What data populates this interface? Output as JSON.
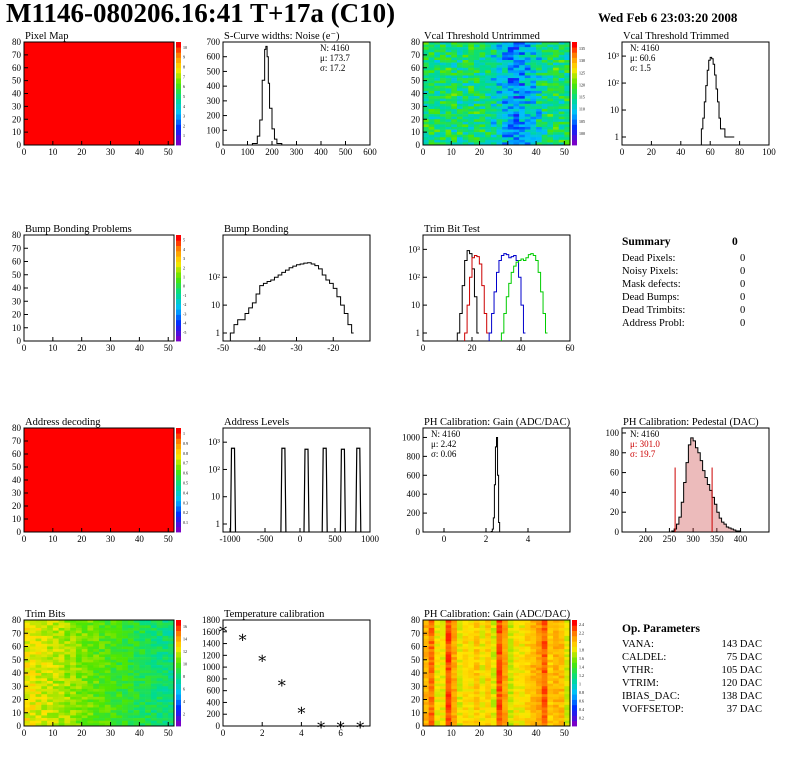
{
  "header": {
    "title": "M1146-080206.16:41 T+17a (C10)",
    "date": "Wed Feb  6 23:03:20 2008"
  },
  "chart_data": [
    {
      "id": "pixel-map",
      "type": "heatmap",
      "title": "Pixel Map",
      "xlim": [
        0,
        52
      ],
      "ylim": [
        0,
        80
      ],
      "xticks": [
        0,
        10,
        20,
        30,
        40,
        50
      ],
      "yticks": [
        0,
        10,
        20,
        30,
        40,
        50,
        60,
        70,
        80
      ],
      "fill": "uniform",
      "fill_color": "#ff0000",
      "palette_ticks": [
        "1",
        "2",
        "3",
        "4",
        "5",
        "6",
        "7",
        "8",
        "9",
        "10"
      ]
    },
    {
      "id": "scurve-widths",
      "type": "histogram",
      "title": "S-Curve widths: Noise (e⁻)",
      "xlim": [
        0,
        600
      ],
      "ylim": [
        0,
        700
      ],
      "xticks": [
        0,
        100,
        200,
        300,
        400,
        500,
        600
      ],
      "yticks": [
        0,
        100,
        200,
        300,
        400,
        500,
        600,
        700
      ],
      "stats": {
        "N": "N: 4160",
        "mu": "μ: 173.7",
        "sigma": "σ: 17.2"
      },
      "x": [
        100,
        120,
        140,
        150,
        160,
        170,
        175,
        180,
        185,
        190,
        200,
        210,
        220,
        240
      ],
      "values": [
        0,
        10,
        60,
        170,
        440,
        650,
        670,
        600,
        420,
        250,
        110,
        40,
        10,
        0
      ]
    },
    {
      "id": "vcal-untrimmed",
      "type": "heatmap",
      "title": "Vcal Threshold Untrimmed",
      "xlim": [
        0,
        52
      ],
      "ylim": [
        0,
        80
      ],
      "xticks": [
        0,
        10,
        20,
        30,
        40,
        50
      ],
      "yticks": [
        0,
        10,
        20,
        30,
        40,
        50,
        60,
        70,
        80
      ],
      "fill": "noise",
      "base_range": [
        0.35,
        0.6
      ],
      "band_center_x": 33,
      "band_width": 12,
      "palette_ticks": [
        "100",
        "105",
        "110",
        "115",
        "120",
        "125",
        "130",
        "135"
      ]
    },
    {
      "id": "vcal-trimmed",
      "type": "histogram",
      "title": "Vcal Threshold Trimmed",
      "xlim": [
        0,
        100
      ],
      "yscale": "log",
      "xticks": [
        0,
        20,
        40,
        60,
        80,
        100
      ],
      "yticks": [
        "1",
        "10",
        "10²",
        "10³"
      ],
      "stats": {
        "N": "N: 4160",
        "mu": "μ: 60.6",
        "sigma": "σ:  1.5"
      },
      "x": [
        54,
        55,
        56,
        57,
        58,
        59,
        60,
        61,
        62,
        63,
        64,
        65,
        66,
        67,
        70,
        72,
        73,
        74,
        75
      ],
      "values": [
        2,
        5,
        20,
        80,
        300,
        700,
        900,
        800,
        500,
        200,
        60,
        20,
        5,
        2,
        1,
        1,
        1,
        1,
        1
      ]
    },
    {
      "id": "bump-bonding-problems",
      "type": "heatmap",
      "title": "Bump Bonding Problems",
      "xlim": [
        0,
        52
      ],
      "ylim": [
        0,
        80
      ],
      "xticks": [
        0,
        10,
        20,
        30,
        40,
        50
      ],
      "yticks": [
        0,
        10,
        20,
        30,
        40,
        50,
        60,
        70,
        80
      ],
      "fill": "empty",
      "palette_ticks": [
        "-5",
        "-4",
        "-3",
        "-2",
        "-1",
        "0",
        "1",
        "2",
        "3",
        "4",
        "5"
      ]
    },
    {
      "id": "bump-bonding",
      "type": "histogram",
      "title": "Bump Bonding",
      "xlim": [
        -50,
        -10
      ],
      "yscale": "log",
      "xticks": [
        -50,
        -40,
        -30,
        -20
      ],
      "yticks": [
        "1",
        "10",
        "10²"
      ],
      "x": [
        -48,
        -47,
        -46,
        -45,
        -44,
        -43,
        -42,
        -41,
        -40,
        -39,
        -38,
        -37,
        -36,
        -35,
        -34,
        -33,
        -32,
        -31,
        -30,
        -29,
        -28,
        -27,
        -26,
        -25,
        -24,
        -23,
        -22,
        -21,
        -20,
        -19,
        -18,
        -17,
        -16,
        -15
      ],
      "values": [
        1,
        2,
        3,
        3,
        5,
        8,
        12,
        25,
        50,
        60,
        70,
        80,
        100,
        120,
        150,
        180,
        220,
        250,
        280,
        300,
        320,
        330,
        300,
        260,
        200,
        120,
        80,
        60,
        40,
        20,
        10,
        5,
        2,
        1
      ]
    },
    {
      "id": "trim-bit-test",
      "type": "histogram",
      "title": "Trim Bit Test",
      "xlim": [
        0,
        60
      ],
      "yscale": "log",
      "xticks": [
        0,
        20,
        40,
        60
      ],
      "yticks": [
        "1",
        "10",
        "10²",
        "10³"
      ],
      "series": [
        {
          "color": "#000000",
          "x": [
            14,
            15,
            16,
            17,
            18,
            19,
            20,
            21,
            22
          ],
          "values": [
            1,
            5,
            50,
            400,
            900,
            700,
            200,
            20,
            1
          ]
        },
        {
          "color": "#cc0000",
          "x": [
            17,
            18,
            19,
            20,
            21,
            22,
            23,
            24,
            25,
            26
          ],
          "values": [
            1,
            10,
            100,
            500,
            600,
            550,
            300,
            50,
            5,
            1
          ]
        },
        {
          "color": "#0000cc",
          "x": [
            27,
            28,
            29,
            30,
            31,
            32,
            33,
            34,
            35,
            36,
            37,
            38,
            39,
            40,
            41
          ],
          "values": [
            1,
            5,
            30,
            150,
            400,
            600,
            700,
            650,
            500,
            550,
            600,
            400,
            100,
            10,
            1
          ]
        },
        {
          "color": "#00cc00",
          "x": [
            32,
            33,
            34,
            35,
            36,
            37,
            38,
            39,
            40,
            41,
            42,
            43,
            44,
            45,
            46,
            47,
            48,
            49,
            50
          ],
          "values": [
            1,
            5,
            20,
            60,
            150,
            250,
            350,
            400,
            450,
            400,
            500,
            650,
            700,
            600,
            400,
            150,
            30,
            5,
            1
          ]
        }
      ]
    },
    {
      "id": "address-decoding",
      "type": "heatmap",
      "title": "Address decoding",
      "xlim": [
        0,
        52
      ],
      "ylim": [
        0,
        80
      ],
      "xticks": [
        0,
        10,
        20,
        30,
        40,
        50
      ],
      "yticks": [
        0,
        10,
        20,
        30,
        40,
        50,
        60,
        70,
        80
      ],
      "fill": "uniform",
      "fill_color": "#ff0000",
      "palette_ticks": [
        "0.1",
        "0.2",
        "0.3",
        "0.4",
        "0.5",
        "0.6",
        "0.7",
        "0.8",
        "0.9",
        "1"
      ]
    },
    {
      "id": "address-levels",
      "type": "histogram",
      "title": "Address Levels",
      "xlim": [
        -1100,
        1000
      ],
      "yscale": "log",
      "xticks": [
        -1000,
        -500,
        0,
        500,
        1000
      ],
      "yticks": [
        "1",
        "10",
        "10²",
        "10³"
      ],
      "peaks": [
        {
          "center": -950,
          "height": 600
        },
        {
          "center": -230,
          "height": 600
        },
        {
          "center": 100,
          "height": 550
        },
        {
          "center": 360,
          "height": 600
        },
        {
          "center": 620,
          "height": 550
        },
        {
          "center": 840,
          "height": 600
        }
      ]
    },
    {
      "id": "ph-gain",
      "type": "histogram",
      "title": "PH Calibration: Gain (ADC/DAC)",
      "xlim": [
        -1,
        6
      ],
      "ylim": [
        0,
        1100
      ],
      "xticks": [
        0,
        2,
        4
      ],
      "yticks": [
        0,
        200,
        400,
        600,
        800,
        1000
      ],
      "stats": {
        "N": "N: 4160",
        "mu": "μ: 2.42",
        "sigma": "σ: 0.06"
      },
      "x": [
        2.2,
        2.25,
        2.3,
        2.35,
        2.4,
        2.45,
        2.5,
        2.55,
        2.6,
        2.65
      ],
      "values": [
        0,
        5,
        30,
        150,
        500,
        900,
        1000,
        600,
        100,
        0
      ]
    },
    {
      "id": "ph-pedestal",
      "type": "histogram",
      "title": "PH Calibration: Pedestal (DAC)",
      "xlim": [
        150,
        460
      ],
      "ylim": [
        0,
        105
      ],
      "xticks": [
        200,
        250,
        300,
        350,
        400
      ],
      "yticks": [
        0,
        20,
        40,
        60,
        80,
        100
      ],
      "stats": {
        "N": "N: 4160",
        "mu": "μ: 301.0",
        "sigma": "σ: 19.7"
      },
      "fit_lines": [
        262,
        340
      ],
      "x": [
        255,
        260,
        265,
        270,
        275,
        280,
        285,
        290,
        295,
        300,
        305,
        310,
        315,
        320,
        325,
        330,
        335,
        340,
        345,
        350,
        355,
        360,
        365,
        370,
        375,
        380,
        385,
        390,
        395,
        400
      ],
      "values": [
        1,
        3,
        8,
        15,
        30,
        50,
        70,
        88,
        95,
        92,
        85,
        80,
        72,
        62,
        55,
        48,
        42,
        35,
        28,
        20,
        14,
        10,
        8,
        5,
        4,
        3,
        2,
        1,
        1,
        0
      ]
    },
    {
      "id": "trim-bits",
      "type": "heatmap",
      "title": "Trim Bits",
      "xlim": [
        0,
        52
      ],
      "ylim": [
        0,
        80
      ],
      "xticks": [
        0,
        10,
        20,
        30,
        40,
        50
      ],
      "yticks": [
        0,
        10,
        20,
        30,
        40,
        50,
        60,
        70,
        80
      ],
      "fill": "gradient_x",
      "range": [
        0.45,
        0.75
      ],
      "palette_ticks": [
        "2",
        "4",
        "6",
        "8",
        "10",
        "12",
        "14",
        "16"
      ]
    },
    {
      "id": "temperature-calibration",
      "type": "scatter",
      "title": "Temperature calibration",
      "xlim": [
        0,
        7.5
      ],
      "ylim": [
        0,
        1800
      ],
      "xticks": [
        0,
        2,
        4,
        6
      ],
      "yticks": [
        0,
        200,
        400,
        600,
        800,
        1000,
        1200,
        1400,
        1600,
        1800
      ],
      "x": [
        0,
        1,
        2,
        3,
        4,
        5,
        6,
        7
      ],
      "values": [
        1650,
        1500,
        1150,
        730,
        260,
        20,
        20,
        20
      ]
    },
    {
      "id": "ph-gain-map",
      "type": "heatmap",
      "title": "PH Calibration: Gain (ADC/DAC)",
      "xlim": [
        0,
        52
      ],
      "ylim": [
        0,
        80
      ],
      "xticks": [
        0,
        10,
        20,
        30,
        40,
        50
      ],
      "yticks": [
        0,
        10,
        20,
        30,
        40,
        50,
        60,
        70,
        80
      ],
      "fill": "columns",
      "range": [
        0.7,
        0.95
      ],
      "palette_ticks": [
        "0.2",
        "0.4",
        "0.6",
        "0.8",
        "1",
        "1.2",
        "1.4",
        "1.6",
        "1.8",
        "2",
        "2.2",
        "2.4"
      ]
    }
  ],
  "summary": {
    "title": "Summary",
    "total": "0",
    "rows": [
      {
        "label": "Dead Pixels:",
        "value": "0"
      },
      {
        "label": "Noisy Pixels:",
        "value": "0"
      },
      {
        "label": "Mask defects:",
        "value": "0"
      },
      {
        "label": "Dead Bumps:",
        "value": "0"
      },
      {
        "label": "Dead Trimbits:",
        "value": "0"
      },
      {
        "label": "Address Probl:",
        "value": "0"
      }
    ]
  },
  "op_parameters": {
    "title": "Op. Parameters",
    "rows": [
      {
        "label": "VANA:",
        "value": "143 DAC"
      },
      {
        "label": "CALDEL:",
        "value": "75 DAC"
      },
      {
        "label": "VTHR:",
        "value": "105 DAC"
      },
      {
        "label": "VTRIM:",
        "value": "120 DAC"
      },
      {
        "label": "IBIAS_DAC:",
        "value": "138 DAC"
      },
      {
        "label": "VOFFSETOP:",
        "value": "37 DAC"
      }
    ]
  }
}
